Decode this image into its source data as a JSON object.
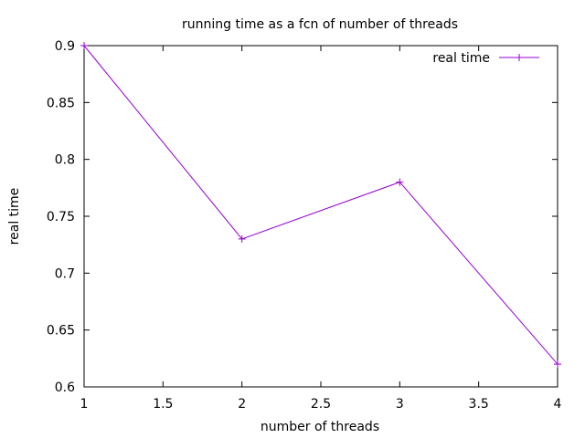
{
  "chart_data": {
    "type": "line",
    "title": "running time as a fcn of number of threads",
    "xlabel": "number of threads",
    "ylabel": "real time",
    "xlim": [
      1,
      4
    ],
    "ylim": [
      0.6,
      0.9
    ],
    "xticks": [
      1,
      1.5,
      2,
      2.5,
      3,
      3.5,
      4
    ],
    "xtick_labels": [
      "1",
      "1.5",
      "2",
      "2.5",
      "3",
      "3.5",
      "4"
    ],
    "yticks": [
      0.6,
      0.65,
      0.7,
      0.75,
      0.8,
      0.85,
      0.9
    ],
    "ytick_labels": [
      "0.6",
      "0.65",
      "0.7",
      "0.75",
      "0.8",
      "0.85",
      "0.9"
    ],
    "grid": false,
    "legend_position": "top-right",
    "series": [
      {
        "name": "real time",
        "color": "#9400d3",
        "marker": "plus",
        "x": [
          1,
          2,
          3,
          4
        ],
        "y": [
          0.9,
          0.73,
          0.78,
          0.62
        ]
      }
    ]
  }
}
